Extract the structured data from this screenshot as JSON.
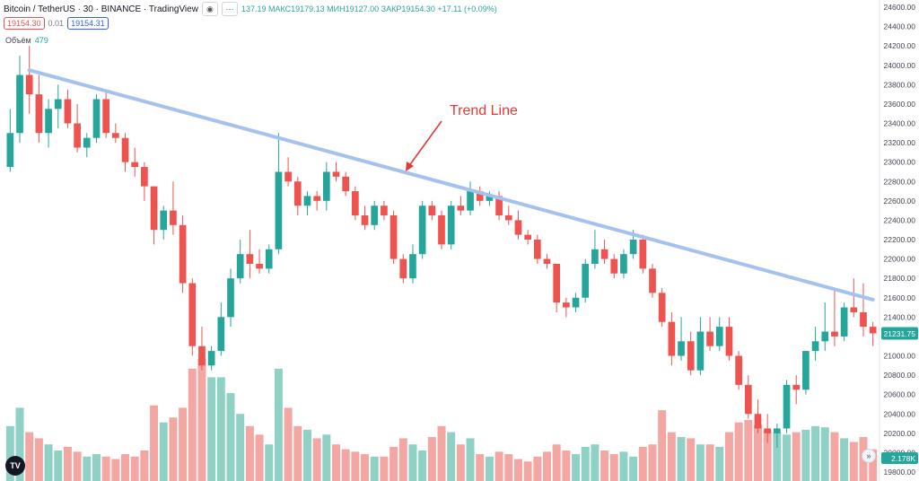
{
  "header": {
    "symbol": "Bitcoin / TetherUS · 30 · BINANCE · TradingView",
    "ohlc": "137.19 МАКС19179.13 МИН19127.00 ЗАКР19154.30 +17.11 (+0.09%)",
    "hide_icon": "eye-icon",
    "more_icon": "more-icon"
  },
  "prices": {
    "sell": "19154.30",
    "spread": "0.01",
    "buy": "19154.31"
  },
  "volume_legend": {
    "label": "Объём",
    "value": "479"
  },
  "annotation": "Trend Line",
  "last_price_label": "21231.75",
  "volume_axis_label": "2.178K",
  "colors": {
    "up": "#26a69a",
    "down": "#ef5350",
    "trend": "#a4c2ef",
    "annotation": "#e53935",
    "up_vol": "#8fd1c5",
    "down_vol": "#f4a6a3"
  },
  "chart_data": {
    "type": "candlestick",
    "ylim": [
      19800,
      24600
    ],
    "y_ticks": [
      24600,
      24400,
      24200,
      24000,
      23800,
      23600,
      23400,
      23200,
      23000,
      22800,
      22600,
      22400,
      22200,
      22000,
      21800,
      21600,
      21400,
      21200,
      21000,
      20800,
      20600,
      20400,
      20200,
      20000,
      19800
    ],
    "candles": [
      {
        "o": 22950,
        "h": 23550,
        "l": 22900,
        "c": 23300
      },
      {
        "o": 23300,
        "h": 24100,
        "l": 23200,
        "c": 23900
      },
      {
        "o": 23900,
        "h": 24200,
        "l": 23500,
        "c": 23700
      },
      {
        "o": 23700,
        "h": 23900,
        "l": 23200,
        "c": 23300
      },
      {
        "o": 23300,
        "h": 23650,
        "l": 23150,
        "c": 23550
      },
      {
        "o": 23550,
        "h": 23800,
        "l": 23350,
        "c": 23650
      },
      {
        "o": 23650,
        "h": 23750,
        "l": 23350,
        "c": 23400
      },
      {
        "o": 23400,
        "h": 23600,
        "l": 23100,
        "c": 23150
      },
      {
        "o": 23150,
        "h": 23300,
        "l": 23050,
        "c": 23250
      },
      {
        "o": 23250,
        "h": 23700,
        "l": 23200,
        "c": 23650
      },
      {
        "o": 23650,
        "h": 23750,
        "l": 23250,
        "c": 23300
      },
      {
        "o": 23300,
        "h": 23400,
        "l": 23200,
        "c": 23250
      },
      {
        "o": 23250,
        "h": 23300,
        "l": 22900,
        "c": 23000
      },
      {
        "o": 23000,
        "h": 23150,
        "l": 22850,
        "c": 22950
      },
      {
        "o": 22950,
        "h": 23000,
        "l": 22600,
        "c": 22750
      },
      {
        "o": 22750,
        "h": 22750,
        "l": 22150,
        "c": 22300
      },
      {
        "o": 22300,
        "h": 22550,
        "l": 22200,
        "c": 22500
      },
      {
        "o": 22500,
        "h": 22800,
        "l": 22250,
        "c": 22350
      },
      {
        "o": 22350,
        "h": 22450,
        "l": 21650,
        "c": 21750
      },
      {
        "o": 21750,
        "h": 21800,
        "l": 21000,
        "c": 21100
      },
      {
        "o": 21100,
        "h": 21300,
        "l": 20850,
        "c": 20900
      },
      {
        "o": 20900,
        "h": 21100,
        "l": 20850,
        "c": 21050
      },
      {
        "o": 21050,
        "h": 21550,
        "l": 21000,
        "c": 21400
      },
      {
        "o": 21400,
        "h": 21900,
        "l": 21300,
        "c": 21800
      },
      {
        "o": 21800,
        "h": 22200,
        "l": 21750,
        "c": 22050
      },
      {
        "o": 22050,
        "h": 22300,
        "l": 21800,
        "c": 21950
      },
      {
        "o": 21950,
        "h": 22100,
        "l": 21850,
        "c": 21900
      },
      {
        "o": 21900,
        "h": 22150,
        "l": 21850,
        "c": 22100
      },
      {
        "o": 22100,
        "h": 23300,
        "l": 22050,
        "c": 22900
      },
      {
        "o": 22900,
        "h": 23050,
        "l": 22750,
        "c": 22800
      },
      {
        "o": 22800,
        "h": 22850,
        "l": 22450,
        "c": 22550
      },
      {
        "o": 22550,
        "h": 22700,
        "l": 22450,
        "c": 22650
      },
      {
        "o": 22650,
        "h": 22700,
        "l": 22500,
        "c": 22600
      },
      {
        "o": 22600,
        "h": 23000,
        "l": 22500,
        "c": 22900
      },
      {
        "o": 22900,
        "h": 23000,
        "l": 22800,
        "c": 22850
      },
      {
        "o": 22850,
        "h": 22900,
        "l": 22650,
        "c": 22700
      },
      {
        "o": 22700,
        "h": 22750,
        "l": 22400,
        "c": 22450
      },
      {
        "o": 22450,
        "h": 22550,
        "l": 22300,
        "c": 22350
      },
      {
        "o": 22350,
        "h": 22600,
        "l": 22300,
        "c": 22550
      },
      {
        "o": 22550,
        "h": 22600,
        "l": 22400,
        "c": 22450
      },
      {
        "o": 22450,
        "h": 22500,
        "l": 21950,
        "c": 22000
      },
      {
        "o": 22000,
        "h": 22050,
        "l": 21750,
        "c": 21800
      },
      {
        "o": 21800,
        "h": 22150,
        "l": 21750,
        "c": 22050
      },
      {
        "o": 22050,
        "h": 22600,
        "l": 22000,
        "c": 22550
      },
      {
        "o": 22550,
        "h": 22600,
        "l": 22400,
        "c": 22450
      },
      {
        "o": 22450,
        "h": 22500,
        "l": 22100,
        "c": 22150
      },
      {
        "o": 22150,
        "h": 22600,
        "l": 22100,
        "c": 22550
      },
      {
        "o": 22550,
        "h": 22650,
        "l": 22450,
        "c": 22500
      },
      {
        "o": 22500,
        "h": 22800,
        "l": 22450,
        "c": 22700
      },
      {
        "o": 22700,
        "h": 22750,
        "l": 22550,
        "c": 22600
      },
      {
        "o": 22600,
        "h": 22700,
        "l": 22550,
        "c": 22650
      },
      {
        "o": 22650,
        "h": 22700,
        "l": 22400,
        "c": 22450
      },
      {
        "o": 22450,
        "h": 22550,
        "l": 22350,
        "c": 22400
      },
      {
        "o": 22400,
        "h": 22500,
        "l": 22200,
        "c": 22250
      },
      {
        "o": 22250,
        "h": 22300,
        "l": 22150,
        "c": 22200
      },
      {
        "o": 22200,
        "h": 22250,
        "l": 21950,
        "c": 22000
      },
      {
        "o": 22000,
        "h": 22050,
        "l": 21900,
        "c": 21950
      },
      {
        "o": 21950,
        "h": 21950,
        "l": 21450,
        "c": 21550
      },
      {
        "o": 21550,
        "h": 21600,
        "l": 21400,
        "c": 21500
      },
      {
        "o": 21500,
        "h": 21650,
        "l": 21450,
        "c": 21600
      },
      {
        "o": 21600,
        "h": 22000,
        "l": 21550,
        "c": 21950
      },
      {
        "o": 21950,
        "h": 22300,
        "l": 21900,
        "c": 22100
      },
      {
        "o": 22100,
        "h": 22200,
        "l": 21950,
        "c": 22000
      },
      {
        "o": 22000,
        "h": 22050,
        "l": 21800,
        "c": 21850
      },
      {
        "o": 21850,
        "h": 22100,
        "l": 21800,
        "c": 22050
      },
      {
        "o": 22050,
        "h": 22300,
        "l": 22000,
        "c": 22200
      },
      {
        "o": 22200,
        "h": 22250,
        "l": 21850,
        "c": 21900
      },
      {
        "o": 21900,
        "h": 21950,
        "l": 21600,
        "c": 21650
      },
      {
        "o": 21650,
        "h": 21700,
        "l": 21300,
        "c": 21350
      },
      {
        "o": 21350,
        "h": 21450,
        "l": 20900,
        "c": 21000
      },
      {
        "o": 21000,
        "h": 21400,
        "l": 20950,
        "c": 21150
      },
      {
        "o": 21150,
        "h": 21250,
        "l": 20800,
        "c": 20850
      },
      {
        "o": 20850,
        "h": 21400,
        "l": 20800,
        "c": 21250
      },
      {
        "o": 21250,
        "h": 21400,
        "l": 21050,
        "c": 21100
      },
      {
        "o": 21100,
        "h": 21400,
        "l": 21050,
        "c": 21300
      },
      {
        "o": 21300,
        "h": 21400,
        "l": 20950,
        "c": 21000
      },
      {
        "o": 21000,
        "h": 21050,
        "l": 20650,
        "c": 20700
      },
      {
        "o": 20700,
        "h": 20800,
        "l": 20350,
        "c": 20400
      },
      {
        "o": 20400,
        "h": 20550,
        "l": 20200,
        "c": 20250
      },
      {
        "o": 20250,
        "h": 20400,
        "l": 20100,
        "c": 20200
      },
      {
        "o": 20200,
        "h": 20300,
        "l": 20050,
        "c": 20250
      },
      {
        "o": 20250,
        "h": 20750,
        "l": 20200,
        "c": 20700
      },
      {
        "o": 20700,
        "h": 20800,
        "l": 20500,
        "c": 20650
      },
      {
        "o": 20650,
        "h": 21050,
        "l": 20600,
        "c": 21050
      },
      {
        "o": 21050,
        "h": 21300,
        "l": 20950,
        "c": 21150
      },
      {
        "o": 21150,
        "h": 21550,
        "l": 21050,
        "c": 21250
      },
      {
        "o": 21250,
        "h": 21700,
        "l": 21100,
        "c": 21200
      },
      {
        "o": 21200,
        "h": 21550,
        "l": 21150,
        "c": 21500
      },
      {
        "o": 21500,
        "h": 21800,
        "l": 21400,
        "c": 21450
      },
      {
        "o": 21450,
        "h": 21750,
        "l": 21200,
        "c": 21300
      },
      {
        "o": 21300,
        "h": 21350,
        "l": 21100,
        "c": 21231.75
      }
    ],
    "volume_rel": [
      0.45,
      0.6,
      0.4,
      0.35,
      0.3,
      0.25,
      0.28,
      0.24,
      0.2,
      0.22,
      0.2,
      0.18,
      0.22,
      0.2,
      0.25,
      0.62,
      0.48,
      0.52,
      0.6,
      0.92,
      1.0,
      0.85,
      0.85,
      0.72,
      0.55,
      0.45,
      0.38,
      0.3,
      0.92,
      0.6,
      0.45,
      0.42,
      0.35,
      0.38,
      0.3,
      0.26,
      0.24,
      0.22,
      0.2,
      0.2,
      0.28,
      0.35,
      0.3,
      0.25,
      0.36,
      0.45,
      0.4,
      0.3,
      0.35,
      0.22,
      0.2,
      0.24,
      0.22,
      0.18,
      0.16,
      0.2,
      0.24,
      0.3,
      0.25,
      0.22,
      0.28,
      0.3,
      0.25,
      0.22,
      0.24,
      0.2,
      0.28,
      0.3,
      0.58,
      0.4,
      0.36,
      0.35,
      0.3,
      0.3,
      0.28,
      0.4,
      0.48,
      0.5,
      0.46,
      0.42,
      0.4,
      0.38,
      0.4,
      0.42,
      0.45,
      0.44,
      0.4,
      0.35,
      0.32,
      0.36,
      0.26
    ],
    "trend_line": {
      "from": {
        "index": 2,
        "value": 23950
      },
      "to": {
        "index": 90,
        "value": 21580
      }
    }
  }
}
